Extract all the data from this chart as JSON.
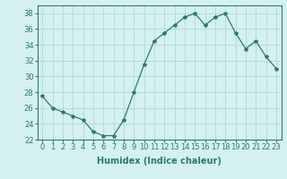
{
  "x": [
    0,
    1,
    2,
    3,
    4,
    5,
    6,
    7,
    8,
    9,
    10,
    11,
    12,
    13,
    14,
    15,
    16,
    17,
    18,
    19,
    20,
    21,
    22,
    23
  ],
  "y": [
    27.5,
    26.0,
    25.5,
    25.0,
    24.5,
    23.0,
    22.5,
    22.5,
    24.5,
    28.0,
    31.5,
    34.5,
    35.5,
    36.5,
    37.5,
    38.0,
    36.5,
    37.5,
    38.0,
    35.5,
    33.5,
    34.5,
    32.5,
    31.0
  ],
  "line_color": "#2d7a6e",
  "marker": "*",
  "marker_size": 3,
  "bg_color": "#d4f0f0",
  "grid_color": "#b0d8d8",
  "xlabel": "Humidex (Indice chaleur)",
  "ylim": [
    22,
    39
  ],
  "xlim": [
    -0.5,
    23.5
  ],
  "yticks": [
    22,
    24,
    26,
    28,
    30,
    32,
    34,
    36,
    38
  ],
  "xticks": [
    0,
    1,
    2,
    3,
    4,
    5,
    6,
    7,
    8,
    9,
    10,
    11,
    12,
    13,
    14,
    15,
    16,
    17,
    18,
    19,
    20,
    21,
    22,
    23
  ],
  "xlabel_fontsize": 7,
  "tick_fontsize": 6
}
